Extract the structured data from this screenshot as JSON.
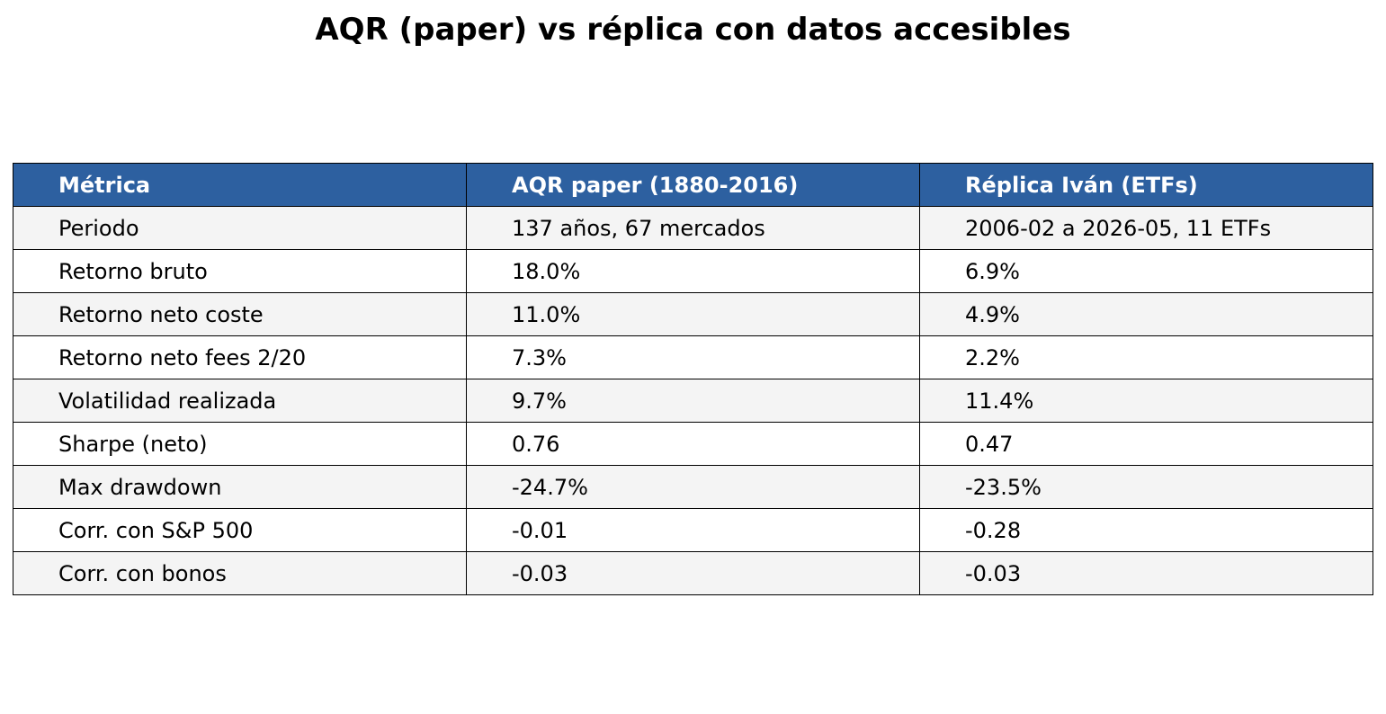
{
  "chart_data": {
    "type": "table",
    "title": "AQR (paper) vs réplica con datos accesibles",
    "colors": {
      "header_bg": "#2d60a0",
      "header_text": "#ffffff",
      "row_alt_bg": "#f4f4f4",
      "row_bg": "#ffffff",
      "border": "#000000"
    },
    "columns": [
      "Métrica",
      "AQR paper (1880-2016)",
      "Réplica Iván (ETFs)"
    ],
    "rows": [
      [
        "Periodo",
        "137 años, 67 mercados",
        "2006-02 a 2026-05, 11 ETFs"
      ],
      [
        "Retorno bruto",
        "18.0%",
        "6.9%"
      ],
      [
        "Retorno neto coste",
        "11.0%",
        "4.9%"
      ],
      [
        "Retorno neto fees 2/20",
        "7.3%",
        "2.2%"
      ],
      [
        "Volatilidad realizada",
        "9.7%",
        "11.4%"
      ],
      [
        "Sharpe (neto)",
        "0.76",
        "0.47"
      ],
      [
        "Max drawdown",
        "-24.7%",
        "-23.5%"
      ],
      [
        "Corr. con S&P 500",
        "-0.01",
        "-0.28"
      ],
      [
        "Corr. con bonos",
        "-0.03",
        "-0.03"
      ]
    ]
  }
}
